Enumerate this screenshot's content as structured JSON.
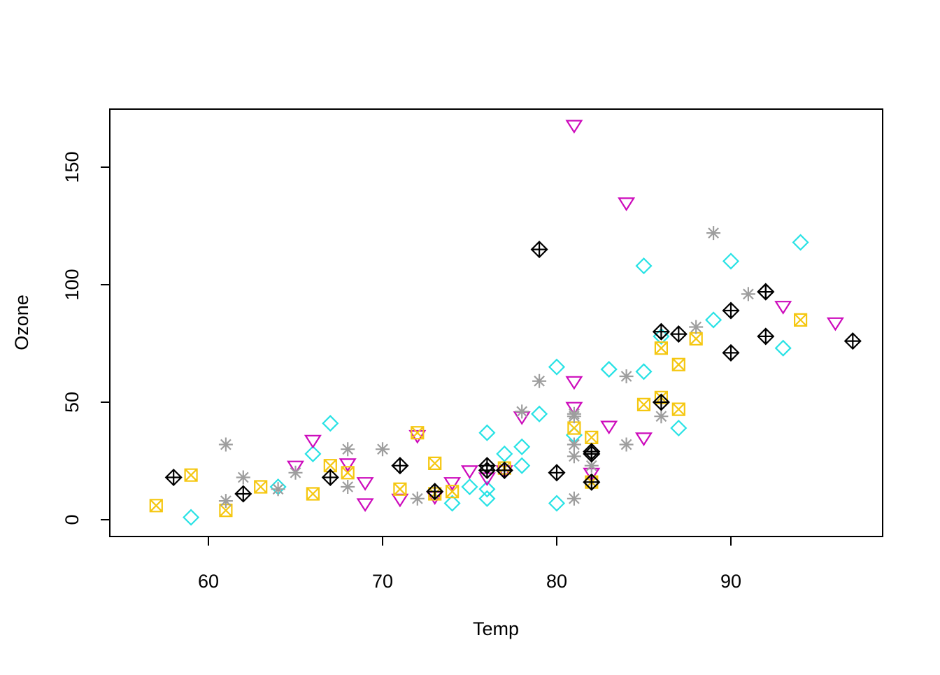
{
  "chart_data": {
    "type": "scatter",
    "title": "",
    "xlabel": "Temp",
    "ylabel": "Ozone",
    "x_ticks": [
      60,
      70,
      80,
      90
    ],
    "y_ticks": [
      0,
      50,
      100,
      150
    ],
    "xlim": [
      54.3,
      98.7
    ],
    "ylim": [
      -7.5,
      174.5
    ],
    "grid": false,
    "legend_position": "none",
    "background_color": "#FFFFFF",
    "box_color": "#000000",
    "series": [
      {
        "name": "group-cyan-diamond",
        "marker": "open-diamond",
        "pch": 5,
        "color": "#28E2E5",
        "points": [
          [
            59,
            1
          ],
          [
            64,
            14
          ],
          [
            66,
            28
          ],
          [
            67,
            41
          ],
          [
            74,
            7
          ],
          [
            75,
            14
          ],
          [
            76,
            37
          ],
          [
            76,
            13
          ],
          [
            76,
            9
          ],
          [
            77,
            28
          ],
          [
            78,
            31
          ],
          [
            78,
            23
          ],
          [
            79,
            45
          ],
          [
            80,
            7
          ],
          [
            80,
            65
          ],
          [
            81,
            36
          ],
          [
            83,
            64
          ],
          [
            83,
            64
          ],
          [
            85,
            63
          ],
          [
            85,
            108
          ],
          [
            86,
            78
          ],
          [
            87,
            39
          ],
          [
            89,
            85
          ],
          [
            90,
            110
          ],
          [
            93,
            73
          ],
          [
            94,
            118
          ]
        ]
      },
      {
        "name": "group-magenta-triangle",
        "marker": "triangle-down",
        "pch": 6,
        "color": "#CD0BBC",
        "points": [
          [
            65,
            23
          ],
          [
            66,
            34
          ],
          [
            68,
            24
          ],
          [
            69,
            16
          ],
          [
            69,
            7
          ],
          [
            71,
            9
          ],
          [
            72,
            36
          ],
          [
            73,
            10
          ],
          [
            74,
            16
          ],
          [
            75,
            21
          ],
          [
            76,
            18
          ],
          [
            77,
            21
          ],
          [
            78,
            44
          ],
          [
            81,
            168
          ],
          [
            81,
            59
          ],
          [
            81,
            48
          ],
          [
            82,
            20
          ],
          [
            83,
            40
          ],
          [
            84,
            135
          ],
          [
            85,
            35
          ],
          [
            93,
            91
          ],
          [
            96,
            84
          ]
        ]
      },
      {
        "name": "group-orange-square-x",
        "marker": "square-x",
        "pch": 7,
        "color": "#F5C710",
        "points": [
          [
            57,
            6
          ],
          [
            59,
            19
          ],
          [
            61,
            4
          ],
          [
            63,
            14
          ],
          [
            66,
            11
          ],
          [
            67,
            23
          ],
          [
            68,
            20
          ],
          [
            71,
            13
          ],
          [
            72,
            37
          ],
          [
            73,
            24
          ],
          [
            73,
            11
          ],
          [
            74,
            12
          ],
          [
            77,
            22
          ],
          [
            81,
            39
          ],
          [
            82,
            35
          ],
          [
            82,
            16
          ],
          [
            85,
            49
          ],
          [
            86,
            52
          ],
          [
            86,
            73
          ],
          [
            87,
            66
          ],
          [
            87,
            47
          ],
          [
            88,
            77
          ],
          [
            94,
            85
          ]
        ]
      },
      {
        "name": "group-gray-asterisk",
        "marker": "asterisk",
        "pch": 8,
        "color": "#9E9E9E",
        "points": [
          [
            61,
            32
          ],
          [
            61,
            8
          ],
          [
            62,
            18
          ],
          [
            64,
            13
          ],
          [
            65,
            20
          ],
          [
            68,
            30
          ],
          [
            68,
            14
          ],
          [
            70,
            30
          ],
          [
            72,
            9
          ],
          [
            78,
            46
          ],
          [
            79,
            59
          ],
          [
            81,
            45
          ],
          [
            81,
            44
          ],
          [
            81,
            32
          ],
          [
            81,
            27
          ],
          [
            81,
            9
          ],
          [
            82,
            23
          ],
          [
            84,
            61
          ],
          [
            84,
            32
          ],
          [
            86,
            44
          ],
          [
            88,
            82
          ],
          [
            89,
            122
          ],
          [
            91,
            96
          ]
        ]
      },
      {
        "name": "group-black-diamond-plus",
        "marker": "diamond-plus",
        "pch": 9,
        "color": "#000000",
        "points": [
          [
            58,
            18
          ],
          [
            62,
            11
          ],
          [
            67,
            18
          ],
          [
            71,
            23
          ],
          [
            73,
            12
          ],
          [
            76,
            23
          ],
          [
            76,
            21
          ],
          [
            77,
            21
          ],
          [
            79,
            115
          ],
          [
            80,
            20
          ],
          [
            82,
            29
          ],
          [
            82,
            28
          ],
          [
            82,
            16
          ],
          [
            86,
            80
          ],
          [
            86,
            50
          ],
          [
            87,
            79
          ],
          [
            90,
            89
          ],
          [
            90,
            71
          ],
          [
            92,
            97
          ],
          [
            92,
            97
          ],
          [
            92,
            78
          ],
          [
            97,
            76
          ]
        ]
      }
    ]
  }
}
